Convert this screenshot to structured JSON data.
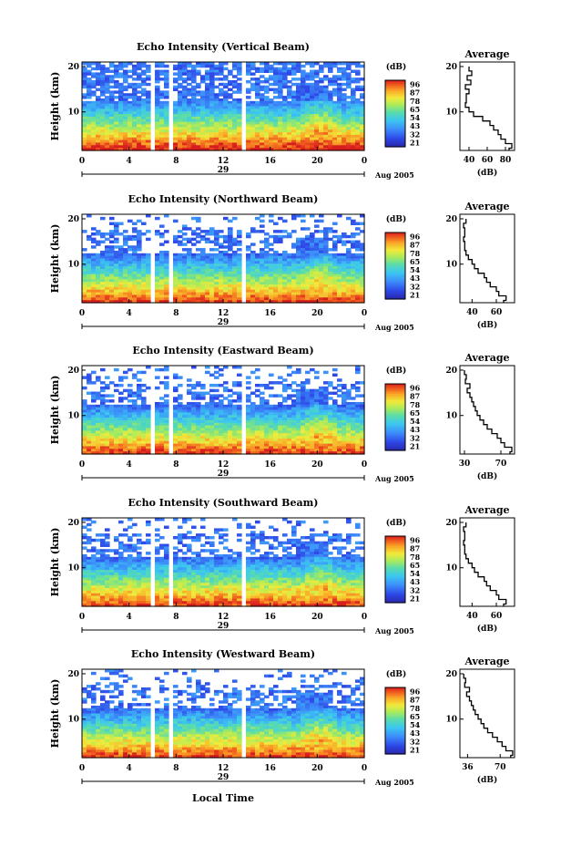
{
  "chart_data": {
    "type": "heatmap",
    "date_label": "Aug 2005",
    "date_day": "29",
    "xlabel": "Local Time",
    "x_ticks": [
      "0",
      "4",
      "8",
      "12",
      "16",
      "20",
      "0"
    ],
    "xlim": [
      0,
      24
    ],
    "ylabel": "Height (km)",
    "y_ticks": [
      "20",
      "10"
    ],
    "ylim": [
      1.5,
      21
    ],
    "colorbar_unit": "(dB)",
    "colorbar_ticks": [
      "96",
      "87",
      "78",
      "65",
      "54",
      "43",
      "32",
      "21"
    ],
    "data_gaps_hours": [
      [
        5.9,
        6.2
      ],
      [
        7.3,
        7.6
      ],
      [
        13.6,
        13.9
      ]
    ],
    "panels": [
      {
        "title": "Echo Intensity (Vertical Beam)",
        "colorbar_ticks": [
          "96",
          "87",
          "78",
          "65",
          "54",
          "43",
          "32",
          "21"
        ],
        "average": {
          "title": "Average",
          "xlabel": "(dB)",
          "x_ticks": [
            "40",
            "60",
            "80"
          ],
          "xlim": [
            30,
            90
          ],
          "y_ticks": [
            "20",
            "10"
          ],
          "profile_height_km": [
            20.0,
            19,
            18,
            17,
            16,
            15,
            14,
            13,
            12,
            11,
            10,
            9,
            8,
            7,
            6,
            5,
            4,
            3,
            2
          ],
          "profile_db": [
            40,
            43,
            38,
            42,
            36,
            40,
            37,
            37,
            36,
            40,
            45,
            55,
            63,
            67,
            72,
            75,
            80,
            87,
            84
          ]
        }
      },
      {
        "title": "Echo Intensity (Northward Beam)",
        "colorbar_ticks": [
          "96",
          "87",
          "78",
          "65",
          "54",
          "43",
          "32",
          "21"
        ],
        "average": {
          "title": "Average",
          "xlabel": "(dB)",
          "x_ticks": [
            "40",
            "60"
          ],
          "xlim": [
            30,
            75
          ],
          "y_ticks": [
            "20",
            "10"
          ],
          "profile_height_km": [
            20.0,
            19,
            18,
            17,
            16,
            15,
            14,
            13,
            12,
            11,
            10,
            9,
            8,
            7,
            6,
            5,
            4,
            3,
            2
          ],
          "profile_db": [
            35,
            33,
            34,
            34,
            33,
            34,
            34,
            35,
            37,
            40,
            42,
            45,
            50,
            52,
            55,
            60,
            62,
            68,
            66
          ]
        }
      },
      {
        "title": "Echo Intensity (Eastward Beam)",
        "colorbar_ticks": [
          "96",
          "87",
          "78",
          "65",
          "54",
          "43",
          "32",
          "21"
        ],
        "average": {
          "title": "Average",
          "xlabel": "(dB)",
          "x_ticks": [
            "30",
            "70"
          ],
          "xlim": [
            25,
            85
          ],
          "y_ticks": [
            "20",
            "10"
          ],
          "profile_height_km": [
            20.0,
            19,
            18,
            17,
            16,
            15,
            14,
            13,
            12,
            11,
            10,
            9,
            8,
            7,
            6,
            5,
            4,
            3,
            2
          ],
          "profile_db": [
            30,
            32,
            31,
            36,
            33,
            36,
            38,
            40,
            42,
            44,
            47,
            51,
            55,
            60,
            66,
            70,
            74,
            82,
            80
          ]
        }
      },
      {
        "title": "Echo Intensity (Southward Beam)",
        "colorbar_ticks": [
          "96",
          "87",
          "78",
          "65",
          "54",
          "43",
          "32",
          "21"
        ],
        "average": {
          "title": "Average",
          "xlabel": "(dB)",
          "x_ticks": [
            "40",
            "60"
          ],
          "xlim": [
            30,
            75
          ],
          "y_ticks": [
            "20",
            "10"
          ],
          "profile_height_km": [
            20.0,
            19,
            18,
            17,
            16,
            15,
            14,
            13,
            12,
            11,
            10,
            9,
            8,
            7,
            6,
            5,
            4,
            3,
            2
          ],
          "profile_db": [
            35,
            33,
            34,
            34,
            33,
            34,
            34,
            35,
            37,
            40,
            42,
            45,
            50,
            52,
            55,
            60,
            62,
            68,
            66
          ]
        }
      },
      {
        "title": "Echo Intensity (Westward Beam)",
        "colorbar_ticks": [
          "96",
          "87",
          "78",
          "65",
          "54",
          "43",
          "32",
          "21"
        ],
        "average": {
          "title": "Average",
          "xlabel": "(dB)",
          "x_ticks": [
            "36",
            "70"
          ],
          "xlim": [
            28,
            85
          ],
          "y_ticks": [
            "20",
            "10"
          ],
          "profile_height_km": [
            20.0,
            19,
            18,
            17,
            16,
            15,
            14,
            13,
            12,
            11,
            10,
            9,
            8,
            7,
            6,
            5,
            4,
            3,
            2
          ],
          "profile_db": [
            32,
            34,
            33,
            38,
            35,
            38,
            40,
            42,
            44,
            47,
            50,
            53,
            57,
            62,
            67,
            72,
            76,
            83,
            81
          ]
        }
      }
    ]
  }
}
